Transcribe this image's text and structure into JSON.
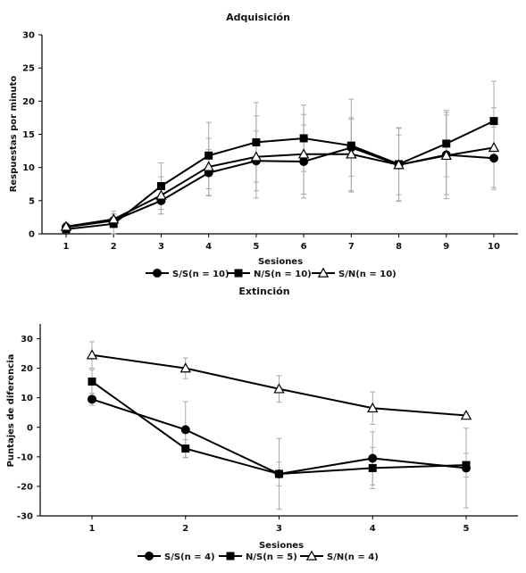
{
  "chart_data": [
    {
      "type": "line",
      "title": "Adquisición",
      "xlabel": "Sesiones",
      "ylabel": "Respuestas por minuto",
      "ylim": [
        0,
        30
      ],
      "yticks": [
        0,
        5,
        10,
        15,
        20,
        25,
        30
      ],
      "x": [
        1,
        2,
        3,
        4,
        5,
        6,
        7,
        8,
        9,
        10
      ],
      "grid": false,
      "legend_position": "bottom",
      "series": [
        {
          "name": "S/S(n = 10)",
          "marker": "circle",
          "values": [
            1.0,
            2.0,
            5.0,
            9.2,
            11.0,
            10.9,
            13.0,
            10.4,
            11.9,
            11.4
          ],
          "error": [
            0.6,
            1.0,
            2.0,
            3.5,
            4.5,
            5.5,
            4.3,
            4.5,
            6.0,
            4.7
          ]
        },
        {
          "name": "N/S(n = 10)",
          "marker": "square",
          "values": [
            0.7,
            1.5,
            7.2,
            11.8,
            13.8,
            14.4,
            13.3,
            10.5,
            13.6,
            17.0
          ],
          "error": [
            0.5,
            1.5,
            3.5,
            5.0,
            6.0,
            5.0,
            7.0,
            5.5,
            5.0,
            6.0
          ]
        },
        {
          "name": "S/N(n = 10)",
          "marker": "triangle",
          "values": [
            1.1,
            2.2,
            5.8,
            10.1,
            11.6,
            12.0,
            12.0,
            10.4,
            11.8,
            13.0
          ],
          "error": [
            0.6,
            1.2,
            2.8,
            4.3,
            6.2,
            6.0,
            5.5,
            5.5,
            6.5,
            6.0
          ]
        }
      ]
    },
    {
      "type": "line",
      "title": "Extinción",
      "xlabel": "Sesiones",
      "ylabel": "Puntajes de diferencia",
      "ylim": [
        -30,
        35
      ],
      "yticks": [
        -30,
        -20,
        -10,
        0,
        10,
        20,
        30
      ],
      "x": [
        1,
        2,
        3,
        4,
        5
      ],
      "grid": false,
      "legend_position": "bottom",
      "series": [
        {
          "name": "S/S(n = 4)",
          "marker": "circle",
          "values": [
            9.5,
            -0.8,
            -15.8,
            -10.5,
            -13.8
          ],
          "error": [
            2.0,
            9.5,
            12.0,
            9.0,
            13.5
          ]
        },
        {
          "name": "N/S(n = 5)",
          "marker": "square",
          "values": [
            15.5,
            -7.2,
            -15.8,
            -13.8,
            -12.8
          ],
          "error": [
            4.0,
            3.0,
            4.0,
            7.0,
            4.0
          ]
        },
        {
          "name": "S/N(n = 4)",
          "marker": "triangle",
          "values": [
            24.5,
            20.0,
            13.0,
            6.5,
            4.0
          ],
          "error": [
            4.5,
            3.5,
            4.5,
            5.5,
            1.0
          ]
        }
      ]
    }
  ]
}
